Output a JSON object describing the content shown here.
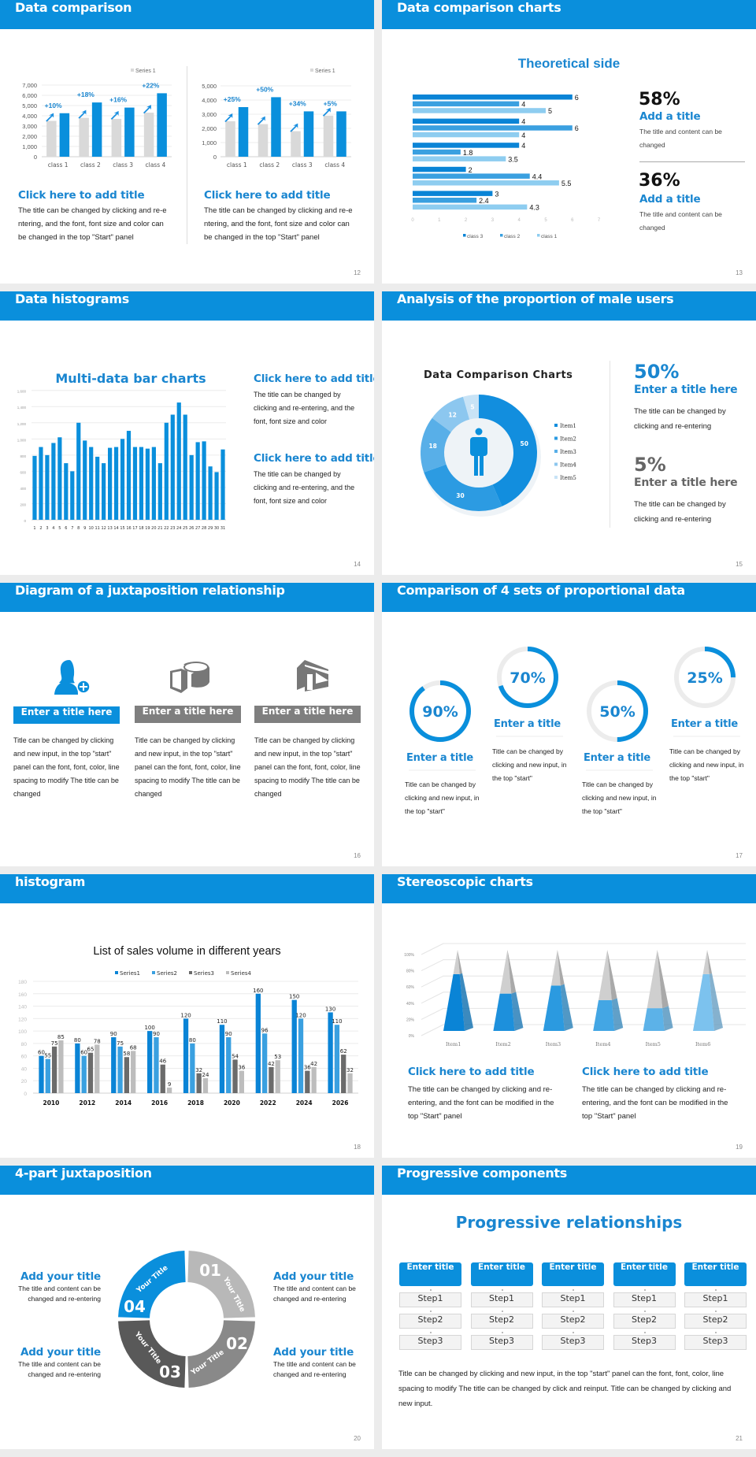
{
  "colors": {
    "brand": "#0a8fdc",
    "title_blue": "#1a86d0",
    "gray_bar": "#d9d9d9",
    "dark_gray": "#6b6b6b",
    "light_gray": "#bdbdbd"
  },
  "slide12": {
    "title": "Data comparison",
    "page": "12",
    "left": {
      "heading": "Click here to add title",
      "body": "The title can be changed by clicking and re-entering, and the font, font size and color can be changed in the top \"Start\" panel"
    },
    "right": {
      "heading": "Click here to add title",
      "body": "The title can be changed by clicking and re-entering, and the font, font size and color can be changed in the top \"Start\" panel"
    }
  },
  "slide13": {
    "title": "Data comparison charts",
    "page": "13",
    "stats": [
      {
        "value": "58%",
        "heading": "Add a title",
        "body": "The title and content can be changed"
      },
      {
        "value": "36%",
        "heading": "Add a title",
        "body": "The title and content can be changed"
      }
    ]
  },
  "slide14": {
    "title": "Data histograms",
    "page": "14",
    "blocks": [
      {
        "heading": "Click here to add title",
        "body": "The title can be changed by clicking and re-entering, and the font, font size and color"
      },
      {
        "heading": "Click here to add title",
        "body": "The title can be changed by clicking and re-entering, and the font, font size and color"
      }
    ]
  },
  "slide15": {
    "title": "Analysis of the proportion of male users",
    "page": "15",
    "stats": [
      {
        "value": "50%",
        "heading": "Enter a title here",
        "body": "The title can be changed by clicking and re-entering",
        "color": "#1a86d0"
      },
      {
        "value": "5%",
        "heading": "Enter a title here",
        "body": "The title can be changed by clicking and re-entering",
        "color": "#666666"
      }
    ]
  },
  "slide16": {
    "title": "Diagram of a juxtaposition relationship",
    "page": "16",
    "items": [
      {
        "icon": "user-add-icon",
        "label": "Enter a title here",
        "color": "#0a8fdc",
        "body": "Title can be changed by clicking and new input, in the top \"start\" panel can the font, font, color, line spacing to modify The title can be changed"
      },
      {
        "icon": "pie-chart-icon",
        "label": "Enter a title here",
        "color": "#7f7f7f",
        "body": "Title can be changed by clicking and new input, in the top \"start\" panel can the font, font, color, line spacing to modify The title can be changed"
      },
      {
        "icon": "store-icon",
        "label": "Enter a title here",
        "color": "#7f7f7f",
        "body": "Title can be changed by clicking and new input, in the top \"start\" panel can the font, font, color, line spacing to modify The title can be changed"
      }
    ]
  },
  "slide17": {
    "title": "Comparison of 4 sets of proportional data",
    "page": "17",
    "rings": [
      {
        "percent": 90,
        "label": "90%",
        "heading": "Enter a title",
        "body": "Title can be changed by clicking and new input, in the top \"start\""
      },
      {
        "percent": 70,
        "label": "70%",
        "heading": "Enter a title",
        "body": "Title can be changed by clicking and new input, in the top \"start\""
      },
      {
        "percent": 50,
        "label": "50%",
        "heading": "Enter a title",
        "body": "Title can be changed by clicking and new input, in the top \"start\""
      },
      {
        "percent": 25,
        "label": "25%",
        "heading": "Enter a title",
        "body": "Title can be changed by clicking and new input, in the top \"start\""
      }
    ]
  },
  "slide18": {
    "title": "histogram",
    "page": "18"
  },
  "slide19": {
    "title": "Stereoscopic charts",
    "page": "19",
    "blocks": [
      {
        "heading": "Click here to add title",
        "body": "The title can be changed by clicking and re-entering, and the font can be modified in the top \"Start\" panel"
      },
      {
        "heading": "Click here to add title",
        "body": "The title can be changed by clicking and re-entering, and the font can be modified in the top \"Start\" panel"
      }
    ]
  },
  "slide20": {
    "title": "4-part juxtaposition",
    "page": "20",
    "segments": [
      {
        "number": "01",
        "label": "Your Title",
        "color": "#b8b8b8"
      },
      {
        "number": "02",
        "label": "Your Title",
        "color": "#898989"
      },
      {
        "number": "03",
        "label": "Your Title",
        "color": "#595959"
      },
      {
        "number": "04",
        "label": "Your Title",
        "color": "#0a8fdc"
      }
    ],
    "blocks": [
      {
        "heading": "Add your title",
        "body": "The title and content can be changed and re-entering"
      },
      {
        "heading": "Add your title",
        "body": "The title and content can be changed and re-entering"
      },
      {
        "heading": "Add your title",
        "body": "The title and content can be changed and re-entering"
      },
      {
        "heading": "Add your title",
        "body": "The title and content can be changed and re-entering"
      }
    ]
  },
  "slide21": {
    "title": "Progressive components",
    "page": "21",
    "heading": "Progressive relationships",
    "columns": [
      {
        "title": "Enter title",
        "steps": [
          "Step1",
          "Step2",
          "Step3"
        ]
      },
      {
        "title": "Enter title",
        "steps": [
          "Step1",
          "Step2",
          "Step3"
        ]
      },
      {
        "title": "Enter title",
        "steps": [
          "Step1",
          "Step2",
          "Step3"
        ]
      },
      {
        "title": "Enter title",
        "steps": [
          "Step1",
          "Step2",
          "Step3"
        ]
      },
      {
        "title": "Enter title",
        "steps": [
          "Step1",
          "Step2",
          "Step3"
        ]
      }
    ],
    "body": "Title can be changed by clicking and new input, in the top \"start\" panel can the font, font, color, line spacing to modify The title can be changed by click and reinput. Title can be changed by clicking and new input."
  },
  "chart_data": [
    {
      "type": "bar",
      "title": "",
      "categories": [
        "class 1",
        "class 2",
        "class 3",
        "class 4"
      ],
      "ylim": [
        0,
        7000
      ],
      "y_tick_labels": [
        "0",
        "1,000",
        "2,000",
        "3,000",
        "4,000",
        "5,000",
        "6,000",
        "7,000"
      ],
      "grid": true,
      "legend": "top-right",
      "series": [
        {
          "name": "Series 1",
          "color": "#d9d9d9",
          "values": [
            3500,
            3800,
            3700,
            4300
          ]
        },
        {
          "color": "#0a8fdc",
          "values": [
            4250,
            5300,
            4800,
            6200
          ]
        }
      ],
      "annotations": [
        "+10%",
        "+18%",
        "+16%",
        "+22%"
      ]
    },
    {
      "type": "bar",
      "title": "",
      "categories": [
        "class 1",
        "class 2",
        "class 3",
        "class 4"
      ],
      "ylim": [
        0,
        5000
      ],
      "y_tick_labels": [
        "0",
        "1,000",
        "2,000",
        "3,000",
        "4,000",
        "5,000"
      ],
      "grid": true,
      "legend": "top-right",
      "series": [
        {
          "name": "Series 1",
          "color": "#d9d9d9",
          "values": [
            2500,
            2300,
            1800,
            2900
          ]
        },
        {
          "color": "#0a8fdc",
          "values": [
            3500,
            4200,
            3200,
            3200
          ]
        }
      ],
      "annotations": [
        "+25%",
        "+50%",
        "+34%",
        "+5%"
      ]
    },
    {
      "type": "bar",
      "orientation": "horizontal",
      "title": "Theoretical side",
      "xlim": [
        0,
        7
      ],
      "x_tick_labels": [
        "0",
        "1",
        "2",
        "3",
        "4",
        "5",
        "6",
        "7"
      ],
      "legend": "bottom",
      "series": [
        {
          "name": "class 3",
          "color": "#0a84d6",
          "values": [
            6,
            4,
            4,
            2,
            3
          ]
        },
        {
          "name": "class 2",
          "color": "#3aa0e0",
          "values": [
            4,
            6,
            1.8,
            4.4,
            2.4
          ]
        },
        {
          "name": "class 1",
          "color": "#8ecdf0",
          "values": [
            5,
            4,
            3.5,
            5.5,
            4.3
          ]
        }
      ]
    },
    {
      "type": "bar",
      "title": "Multi-data bar charts",
      "categories": [
        "1",
        "2",
        "3",
        "4",
        "5",
        "6",
        "7",
        "8",
        "9",
        "10",
        "11",
        "12",
        "13",
        "14",
        "15",
        "16",
        "17",
        "18",
        "19",
        "20",
        "21",
        "22",
        "23",
        "24",
        "25",
        "26",
        "27",
        "28",
        "29",
        "30",
        "31"
      ],
      "ylim": [
        0,
        1600
      ],
      "y_tick_labels": [
        "0",
        "200",
        "400",
        "600",
        "800",
        "1,000",
        "1,200",
        "1,400",
        "1,600"
      ],
      "grid": true,
      "series": [
        {
          "color": "#0a8fdc",
          "values": [
            790,
            900,
            800,
            950,
            1020,
            700,
            600,
            1200,
            980,
            900,
            780,
            700,
            890,
            900,
            1000,
            1100,
            900,
            900,
            880,
            900,
            700,
            1200,
            1300,
            1450,
            1300,
            800,
            960,
            970,
            660,
            590,
            870
          ]
        }
      ]
    },
    {
      "type": "pie",
      "variant": "donut",
      "title": "Data Comparison Charts",
      "legend": "right",
      "labels": [
        "Item1",
        "Item2",
        "Item3",
        "Item4",
        "Item5"
      ],
      "values": [
        50,
        30,
        18,
        12,
        5
      ],
      "colors": [
        "#128ede",
        "#2c9be2",
        "#58afe8",
        "#8cc7ef",
        "#c8e3f6"
      ]
    },
    {
      "type": "bar",
      "title": "List of sales volume in different years",
      "categories": [
        "2010",
        "2012",
        "2014",
        "2016",
        "2018",
        "2020",
        "2022",
        "2024",
        "2026"
      ],
      "ylim": [
        0,
        180
      ],
      "y_tick_labels": [
        "0",
        "20",
        "40",
        "60",
        "80",
        "100",
        "120",
        "140",
        "160",
        "180"
      ],
      "grid": true,
      "legend": "top",
      "series": [
        {
          "name": "Series1",
          "color": "#0a84d6",
          "values": [
            60,
            80,
            90,
            100,
            120,
            110,
            160,
            150,
            130
          ]
        },
        {
          "name": "Series2",
          "color": "#3aa0e0",
          "values": [
            55,
            60,
            75,
            90,
            80,
            90,
            96,
            120,
            110
          ]
        },
        {
          "name": "Series3",
          "color": "#6b6b6b",
          "values": [
            75,
            65,
            58,
            46,
            32,
            54,
            42,
            36,
            62
          ]
        },
        {
          "name": "Series4",
          "color": "#bdbdbd",
          "values": [
            85,
            78,
            68,
            9,
            24,
            36,
            53,
            42,
            32
          ]
        }
      ]
    },
    {
      "type": "bar",
      "variant": "3d-pyramid",
      "title": "",
      "categories": [
        "Item1",
        "Item2",
        "Item3",
        "Item4",
        "Item5",
        "Item6"
      ],
      "ylim": [
        0,
        100
      ],
      "y_tick_labels": [
        "0%",
        "20%",
        "40%",
        "60%",
        "80%",
        "100%"
      ],
      "grid": true,
      "values": [
        70,
        46,
        56,
        38,
        28,
        70
      ],
      "colors": [
        "#0a84d6",
        "#1d90dc",
        "#2b9ae0",
        "#43a6e4",
        "#5cb2e8",
        "#7cc2ee"
      ]
    }
  ]
}
